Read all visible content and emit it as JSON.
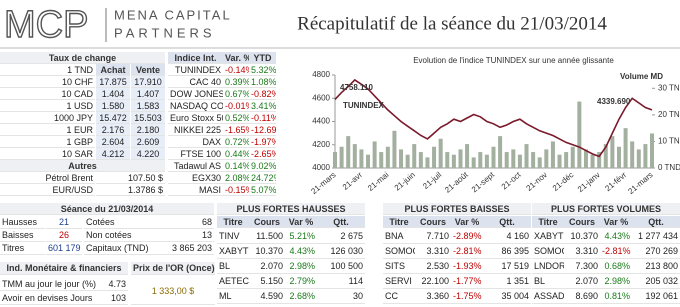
{
  "header": {
    "logo": "MCP",
    "company_line1": "MENA CAPITAL",
    "company_line2": "PARTNERS",
    "title": "Récapitulatif de la séance du 21/03/2014"
  },
  "fx": {
    "title": "Taux de change",
    "columns": [
      "1 TND",
      "Achat",
      "Vente"
    ],
    "rows": [
      [
        "10 CHF",
        "17.875",
        "17.910"
      ],
      [
        "10 CAD",
        "1.404",
        "1.407"
      ],
      [
        "1 USD",
        "1.580",
        "1.583"
      ],
      [
        "1000 JPY",
        "15.472",
        "15.503"
      ],
      [
        "1 EUR",
        "2.176",
        "2.180"
      ],
      [
        "1 GBP",
        "2.604",
        "2.609"
      ],
      [
        "10 SAR",
        "4.212",
        "4.220"
      ]
    ]
  },
  "others": {
    "title": "Autres",
    "rows": [
      [
        "Pétrol Brent",
        "107.50 $"
      ],
      [
        "EUR/USD",
        "1.3786 $"
      ]
    ]
  },
  "indices": {
    "columns": [
      "Indice Int.",
      "Var. %",
      "YTD"
    ],
    "rows": [
      [
        "TUNINDEX",
        "-0.14%",
        "5.32%"
      ],
      [
        "CAC 40",
        "0.39%",
        "1.08%"
      ],
      [
        "DOW JONES",
        "0.67%",
        "-0.82%"
      ],
      [
        "NASDAQ COM",
        "-0.01%",
        "3.41%"
      ],
      [
        "Euro Stoxx 50",
        "0.52%",
        "-0.11%"
      ],
      [
        "NIKKEI 225",
        "-1.65%",
        "-12.69%"
      ],
      [
        "DAX",
        "0.72%",
        "-1.97%"
      ],
      [
        "FTSE 100",
        "0.44%",
        "-2.65%"
      ],
      [
        "Tadawul AS",
        "0.14%",
        "9.02%"
      ],
      [
        "EGX30",
        "2.08%",
        "24.72%"
      ],
      [
        "MASI",
        "-0.15%",
        "5.07%"
      ]
    ]
  },
  "chart_data": {
    "type": "line",
    "title": "Evolution de l'indice TUNINDEX sur une année glissante",
    "categories": [
      "21-mars",
      null,
      null,
      null,
      "21-avr",
      null,
      null,
      null,
      "21-mai",
      null,
      null,
      null,
      "21-juin",
      null,
      null,
      null,
      "21-juil",
      null,
      null,
      null,
      "21-août",
      null,
      null,
      null,
      "21-sept",
      null,
      null,
      null,
      "21-oct",
      null,
      null,
      null,
      "21-nov",
      null,
      null,
      null,
      "21-déc",
      null,
      null,
      null,
      "21-janv",
      null,
      null,
      null,
      "21-févr",
      null,
      null,
      null,
      "21-mars"
    ],
    "series": [
      {
        "name": "TUNINDEX",
        "type": "line",
        "color": "#7b1a2c",
        "values": [
          4590,
          4650,
          4700,
          4758,
          4720,
          4680,
          4620,
          4560,
          4500,
          4450,
          4400,
          4360,
          4320,
          4280,
          4250,
          4300,
          4350,
          4380,
          4420,
          4400,
          4430,
          4460,
          4440,
          4400,
          4380,
          4350,
          4370,
          4400,
          4420,
          4380,
          4350,
          4320,
          4300,
          4280,
          4250,
          4220,
          4200,
          4180,
          4150,
          4120,
          4100,
          4180,
          4300,
          4420,
          4520,
          4600,
          4560,
          4520,
          4500
        ]
      },
      {
        "name": "Volume MD",
        "type": "bar",
        "axis": "y2",
        "color": "#a3b0a0",
        "values": [
          6,
          8,
          12,
          9,
          7,
          5,
          10,
          6,
          8,
          14,
          7,
          5,
          9,
          6,
          4,
          8,
          11,
          6,
          5,
          7,
          9,
          4,
          6,
          5,
          8,
          12,
          6,
          7,
          5,
          9,
          6,
          4,
          7,
          10,
          5,
          6,
          8,
          25,
          7,
          5,
          6,
          9,
          12,
          8,
          15,
          10,
          7,
          9,
          13
        ]
      }
    ],
    "annotations": [
      "4758.110",
      "4339.690"
    ],
    "ylim": [
      4000,
      4800
    ],
    "yticks": [
      4000,
      4200,
      4400,
      4600,
      4800
    ],
    "y2lim": [
      0,
      35
    ],
    "y2ticks": [
      {
        "value": 0,
        "label": "0 TND"
      },
      {
        "value": 10,
        "label": "10 TND"
      },
      {
        "value": 20,
        "label": "20 TND"
      },
      {
        "value": 30,
        "label": "30 TND"
      }
    ],
    "grid": false
  },
  "session": {
    "title": "Séance du 21/03/2014",
    "rows": [
      [
        "Hausses",
        "21",
        "Cotées",
        "68"
      ],
      [
        "Baisses",
        "26",
        "Non cotées",
        "13"
      ],
      [
        "Titres",
        "601 179",
        "Capitaux (TND)",
        "3 865 203"
      ]
    ]
  },
  "monetary": {
    "title": "Ind. Monétaire & financiers",
    "rows": [
      [
        "TMM au jour le jour (%)",
        "4.73"
      ],
      [
        "Avoir en devises Jours",
        "103"
      ]
    ]
  },
  "gold": {
    "title": "Prix de l'OR (Once)",
    "value": "1 333,00 $"
  },
  "movers": [
    {
      "title": "PLUS FORTES HAUSSES",
      "columns": [
        "Titre",
        "Cours",
        "Var %",
        "Qtt."
      ],
      "rows": [
        [
          "TINV",
          "11.500",
          "5.21%",
          "2 675"
        ],
        [
          "XABYT",
          "10.370",
          "4.43%",
          "126 030"
        ],
        [
          "BL",
          "2.070",
          "2.98%",
          "100 500"
        ],
        [
          "AETEC",
          "5.150",
          "2.79%",
          "114"
        ],
        [
          "ML",
          "4.590",
          "2.68%",
          "30"
        ]
      ]
    },
    {
      "title": "PLUS FORTES BAISSES",
      "columns": [
        "Titre",
        "Cours",
        "Var %",
        "Qtt."
      ],
      "rows": [
        [
          "BNA",
          "7.710",
          "-2.89%",
          "4 160"
        ],
        [
          "SOMOC",
          "3.310",
          "-2.81%",
          "86 395"
        ],
        [
          "SITS",
          "2.530",
          "-1.93%",
          "17 519"
        ],
        [
          "SERVI",
          "22.100",
          "-1.77%",
          "1 351"
        ],
        [
          "CC",
          "3.360",
          "-1.75%",
          "35 004"
        ]
      ]
    },
    {
      "title": "PLUS FORTES VOLUMES",
      "columns": [
        "Titre",
        "Cours",
        "Var %",
        "Qtt."
      ],
      "rows": [
        [
          "XABYT",
          "10.370",
          "4.43%",
          "1 277 434"
        ],
        [
          "SOMOC",
          "3.310",
          "-2.81%",
          "270 269"
        ],
        [
          "LNDOR",
          "7.300",
          "0.68%",
          "213 800"
        ],
        [
          "BL",
          "2.070",
          "2.98%",
          "205 032"
        ],
        [
          "ASSAD",
          "8.690",
          "0.81%",
          "192 061"
        ]
      ]
    }
  ]
}
